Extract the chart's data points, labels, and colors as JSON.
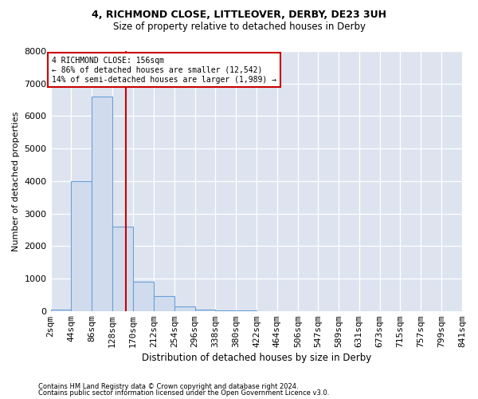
{
  "title1": "4, RICHMOND CLOSE, LITTLEOVER, DERBY, DE23 3UH",
  "title2": "Size of property relative to detached houses in Derby",
  "xlabel": "Distribution of detached houses by size in Derby",
  "ylabel": "Number of detached properties",
  "annotation_line1": "4 RICHMOND CLOSE: 156sqm",
  "annotation_line2": "← 86% of detached houses are smaller (12,542)",
  "annotation_line3": "14% of semi-detached houses are larger (1,989) →",
  "footnote1": "Contains HM Land Registry data © Crown copyright and database right 2024.",
  "footnote2": "Contains public sector information licensed under the Open Government Licence v3.0.",
  "bin_edges": [
    2,
    44,
    86,
    128,
    170,
    212,
    254,
    296,
    338,
    380,
    422,
    464,
    506,
    547,
    589,
    631,
    673,
    715,
    757,
    799,
    841
  ],
  "bin_labels": [
    "2sqm",
    "44sqm",
    "86sqm",
    "128sqm",
    "170sqm",
    "212sqm",
    "254sqm",
    "296sqm",
    "338sqm",
    "380sqm",
    "422sqm",
    "464sqm",
    "506sqm",
    "547sqm",
    "589sqm",
    "631sqm",
    "673sqm",
    "715sqm",
    "757sqm",
    "799sqm",
    "841sqm"
  ],
  "counts": [
    50,
    4000,
    6600,
    2600,
    900,
    450,
    150,
    50,
    10,
    5,
    0,
    0,
    0,
    0,
    0,
    0,
    0,
    0,
    0,
    0
  ],
  "bar_color": "#d0dcee",
  "bar_edge_color": "#6a9fd8",
  "vline_x": 156,
  "vline_color": "#cc0000",
  "box_color": "#cc0000",
  "background_color": "#dde4f0",
  "ylim": [
    0,
    8000
  ],
  "yticks": [
    0,
    1000,
    2000,
    3000,
    4000,
    5000,
    6000,
    7000,
    8000
  ]
}
